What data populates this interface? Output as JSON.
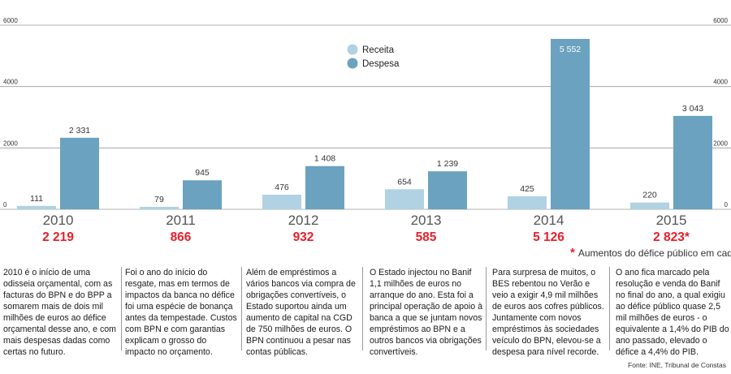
{
  "chart_data": {
    "type": "bar",
    "categories": [
      "2010",
      "2011",
      "2012",
      "2013",
      "2014",
      "2015"
    ],
    "series": [
      {
        "name": "Receita",
        "values": [
          111,
          79,
          476,
          654,
          425,
          220
        ],
        "color": "#b0d2e2"
      },
      {
        "name": "Despesa",
        "values": [
          2331,
          945,
          1408,
          1239,
          5552,
          3043
        ],
        "color": "#6aa2bf"
      }
    ],
    "value_labels": {
      "Receita": [
        "111",
        "79",
        "476",
        "654",
        "425",
        "220"
      ],
      "Despesa": [
        "2 331",
        "945",
        "1 408",
        "1 239",
        "5 552",
        "3 043"
      ]
    },
    "deficit_labels": [
      "2 219",
      "866",
      "932",
      "585",
      "5 126",
      "2 823*"
    ],
    "ylim": [
      0,
      6000
    ],
    "y_ticks": [
      0,
      2000,
      4000,
      6000
    ],
    "y_tick_labels": [
      "0",
      "2000",
      "4000",
      "6000"
    ],
    "legend_position": "top-center",
    "grid": true,
    "colors": {
      "deficit": "#e8202a"
    }
  },
  "note": {
    "star": "*",
    "text": "Aumentos do défice público em cada ano"
  },
  "columns": [
    "2010 é o início de uma odisseia orçamental, com as facturas do BPN e do BPP a somarem mais de dois mil milhões de euros ao défice orçamental desse ano, e com mais despesas dadas como certas no futuro.",
    "Foi o ano do início do resgate, mas em termos de impactos da banca no défice foi uma espécie de bonança antes da tempestade. Custos com BPN e com garantias explicam o grosso do impacto no orçamento.",
    "Além de empréstimos a vários bancos via compra de obrigações convertíveis, o Estado suportou ainda um aumento de capital na CGD de 750 milhões de euros. O BPN continuou a pesar nas contas públicas.",
    "O Estado injectou no Banif 1,1 milhões de euros no arranque do ano. Esta foi a principal operação de apoio à banca a que se juntam novos empréstimos ao BPN e a outros bancos via obrigações convertíveis.",
    "Para surpresa de muitos, o BES rebentou no Verão e veio a exigir 4,9 mil milhões de euros aos cofres públicos. Juntamente com novos empréstimos às sociedades veículo do BPN, elevou-se a despesa para nível recorde.",
    "O ano fica marcado pela resolução e venda do Banif no final do ano, a qual exigiu ao défice público quase 2,5 mil milhões de euros - o equivalente a 1,4% do PIB do ano passado, elevado o défice a 4,4% do PIB."
  ],
  "source": "Fonte: INE, Tribunal de Constas"
}
